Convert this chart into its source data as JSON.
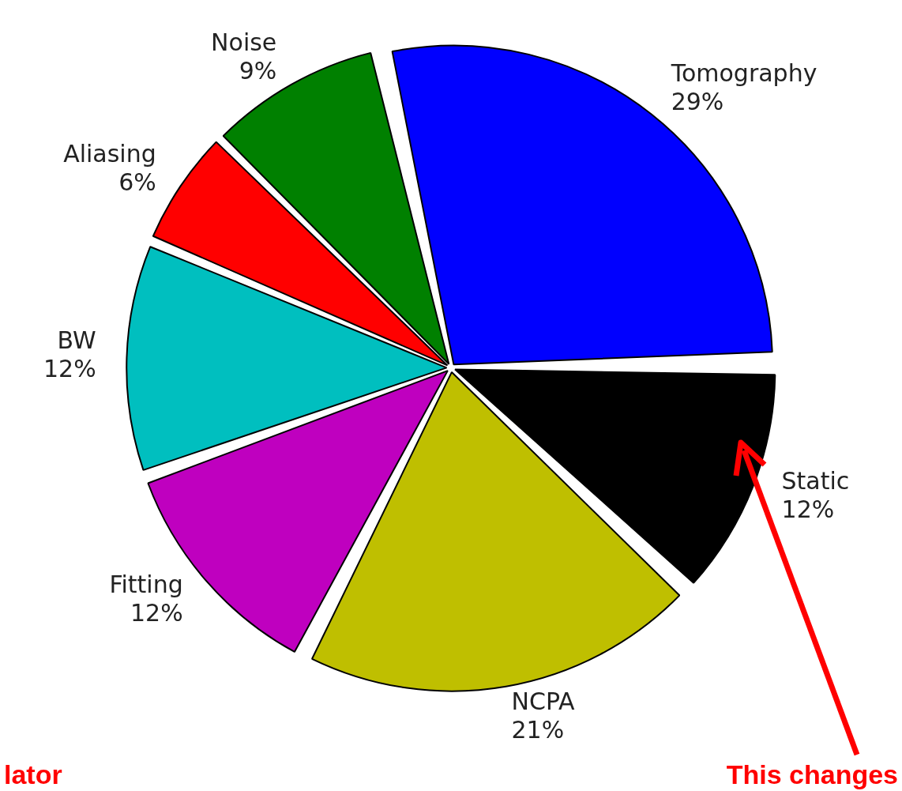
{
  "chart_data": {
    "type": "pie",
    "categories": [
      "Tomography",
      "Static",
      "NCPA",
      "Fitting",
      "BW",
      "Aliasing",
      "Noise"
    ],
    "values": [
      29,
      12,
      21,
      12,
      12,
      6,
      9
    ],
    "value_labels": [
      "29%",
      "12%",
      "21%",
      "12%",
      "12%",
      "6%",
      "9%"
    ],
    "colors": [
      "#0000ff",
      "#000000",
      "#bfbf00",
      "#bf00bf",
      "#00bfbf",
      "#ff0000",
      "#008000"
    ],
    "legend": false,
    "annotations": [
      "lator",
      "This changes"
    ]
  }
}
